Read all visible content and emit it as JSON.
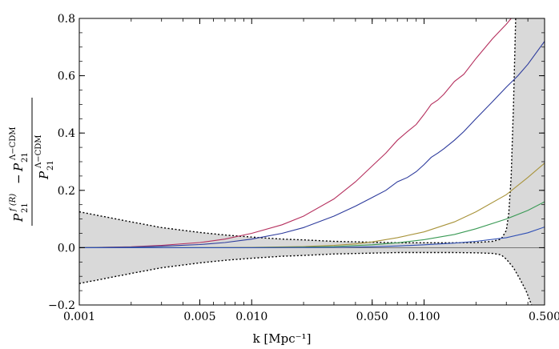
{
  "chart_data": {
    "type": "line",
    "xlabel": "k [Mpc⁻¹]",
    "xscale": "log",
    "xlim": [
      0.001,
      0.5
    ],
    "ylim": [
      -0.2,
      0.8
    ],
    "x_ticks": [
      0.001,
      0.005,
      0.01,
      0.05,
      0.1,
      0.5
    ],
    "x_tick_labels": [
      "0.001",
      "0.005",
      "0.010",
      "0.050",
      "0.100",
      "0.500"
    ],
    "y_ticks": [
      -0.2,
      0.0,
      0.2,
      0.4,
      0.6,
      0.8
    ],
    "y_tick_labels": [
      "−0.2",
      "0.0",
      "0.2",
      "0.4",
      "0.6",
      "0.8"
    ],
    "ylabel_parts": {
      "P": "P",
      "sub": "21",
      "sup_fr": "f (R)",
      "sup_lcdm": "Λ−CDM",
      "minus": "−"
    },
    "grid": false,
    "series": [
      {
        "color": "#b5305e",
        "points": [
          [
            0.001,
            0.0
          ],
          [
            0.002,
            0.003
          ],
          [
            0.003,
            0.008
          ],
          [
            0.005,
            0.018
          ],
          [
            0.007,
            0.03
          ],
          [
            0.01,
            0.05
          ],
          [
            0.015,
            0.08
          ],
          [
            0.02,
            0.11
          ],
          [
            0.03,
            0.17
          ],
          [
            0.04,
            0.23
          ],
          [
            0.05,
            0.285
          ],
          [
            0.06,
            0.33
          ],
          [
            0.07,
            0.375
          ],
          [
            0.08,
            0.405
          ],
          [
            0.09,
            0.43
          ],
          [
            0.1,
            0.465
          ],
          [
            0.11,
            0.5
          ],
          [
            0.12,
            0.515
          ],
          [
            0.13,
            0.535
          ],
          [
            0.15,
            0.58
          ],
          [
            0.17,
            0.605
          ],
          [
            0.2,
            0.66
          ],
          [
            0.25,
            0.73
          ],
          [
            0.3,
            0.78
          ],
          [
            0.32,
            0.8
          ]
        ]
      },
      {
        "color": "#2c3a9c",
        "points": [
          [
            0.001,
            0.0
          ],
          [
            0.002,
            0.002
          ],
          [
            0.003,
            0.005
          ],
          [
            0.005,
            0.011
          ],
          [
            0.007,
            0.018
          ],
          [
            0.01,
            0.03
          ],
          [
            0.015,
            0.05
          ],
          [
            0.02,
            0.07
          ],
          [
            0.03,
            0.11
          ],
          [
            0.04,
            0.145
          ],
          [
            0.05,
            0.175
          ],
          [
            0.06,
            0.2
          ],
          [
            0.07,
            0.23
          ],
          [
            0.08,
            0.245
          ],
          [
            0.09,
            0.265
          ],
          [
            0.1,
            0.29
          ],
          [
            0.11,
            0.315
          ],
          [
            0.12,
            0.33
          ],
          [
            0.13,
            0.345
          ],
          [
            0.15,
            0.375
          ],
          [
            0.17,
            0.405
          ],
          [
            0.2,
            0.45
          ],
          [
            0.25,
            0.51
          ],
          [
            0.3,
            0.56
          ],
          [
            0.35,
            0.6
          ],
          [
            0.4,
            0.64
          ],
          [
            0.5,
            0.72
          ]
        ]
      },
      {
        "color": "#a8933a",
        "points": [
          [
            0.001,
            0.0
          ],
          [
            0.005,
            0.0
          ],
          [
            0.01,
            0.001
          ],
          [
            0.02,
            0.004
          ],
          [
            0.03,
            0.008
          ],
          [
            0.04,
            0.013
          ],
          [
            0.05,
            0.02
          ],
          [
            0.07,
            0.035
          ],
          [
            0.1,
            0.055
          ],
          [
            0.15,
            0.09
          ],
          [
            0.2,
            0.125
          ],
          [
            0.3,
            0.185
          ],
          [
            0.4,
            0.245
          ],
          [
            0.5,
            0.295
          ]
        ]
      },
      {
        "color": "#3a9a55",
        "points": [
          [
            0.001,
            0.0
          ],
          [
            0.01,
            0.0
          ],
          [
            0.02,
            0.002
          ],
          [
            0.03,
            0.004
          ],
          [
            0.05,
            0.01
          ],
          [
            0.07,
            0.017
          ],
          [
            0.1,
            0.028
          ],
          [
            0.15,
            0.046
          ],
          [
            0.2,
            0.066
          ],
          [
            0.3,
            0.1
          ],
          [
            0.4,
            0.13
          ],
          [
            0.5,
            0.16
          ]
        ]
      },
      {
        "color": "#2f4fb5",
        "points": [
          [
            0.001,
            0.0
          ],
          [
            0.01,
            0.0
          ],
          [
            0.03,
            0.001
          ],
          [
            0.05,
            0.003
          ],
          [
            0.07,
            0.006
          ],
          [
            0.1,
            0.01
          ],
          [
            0.15,
            0.016
          ],
          [
            0.2,
            0.022
          ],
          [
            0.3,
            0.035
          ],
          [
            0.4,
            0.052
          ],
          [
            0.5,
            0.072
          ]
        ]
      }
    ],
    "band": {
      "fill": "#d9d9d9",
      "upper": [
        [
          0.001,
          0.125
        ],
        [
          0.002,
          0.09
        ],
        [
          0.003,
          0.07
        ],
        [
          0.005,
          0.053
        ],
        [
          0.007,
          0.044
        ],
        [
          0.01,
          0.037
        ],
        [
          0.015,
          0.03
        ],
        [
          0.02,
          0.027
        ],
        [
          0.03,
          0.022
        ],
        [
          0.05,
          0.019
        ],
        [
          0.07,
          0.017
        ],
        [
          0.1,
          0.017
        ],
        [
          0.15,
          0.017
        ],
        [
          0.2,
          0.018
        ],
        [
          0.25,
          0.022
        ],
        [
          0.28,
          0.03
        ],
        [
          0.3,
          0.06
        ],
        [
          0.31,
          0.12
        ],
        [
          0.32,
          0.25
        ],
        [
          0.33,
          0.5
        ],
        [
          0.34,
          0.8
        ]
      ],
      "lower": [
        [
          0.001,
          -0.125
        ],
        [
          0.002,
          -0.09
        ],
        [
          0.003,
          -0.07
        ],
        [
          0.005,
          -0.053
        ],
        [
          0.007,
          -0.044
        ],
        [
          0.01,
          -0.037
        ],
        [
          0.015,
          -0.03
        ],
        [
          0.02,
          -0.027
        ],
        [
          0.03,
          -0.022
        ],
        [
          0.05,
          -0.019
        ],
        [
          0.07,
          -0.017
        ],
        [
          0.1,
          -0.017
        ],
        [
          0.15,
          -0.017
        ],
        [
          0.2,
          -0.018
        ],
        [
          0.25,
          -0.02
        ],
        [
          0.28,
          -0.025
        ],
        [
          0.3,
          -0.04
        ],
        [
          0.33,
          -0.07
        ],
        [
          0.36,
          -0.11
        ],
        [
          0.39,
          -0.15
        ],
        [
          0.42,
          -0.2
        ]
      ],
      "right_fill_from_x": 0.34
    }
  }
}
